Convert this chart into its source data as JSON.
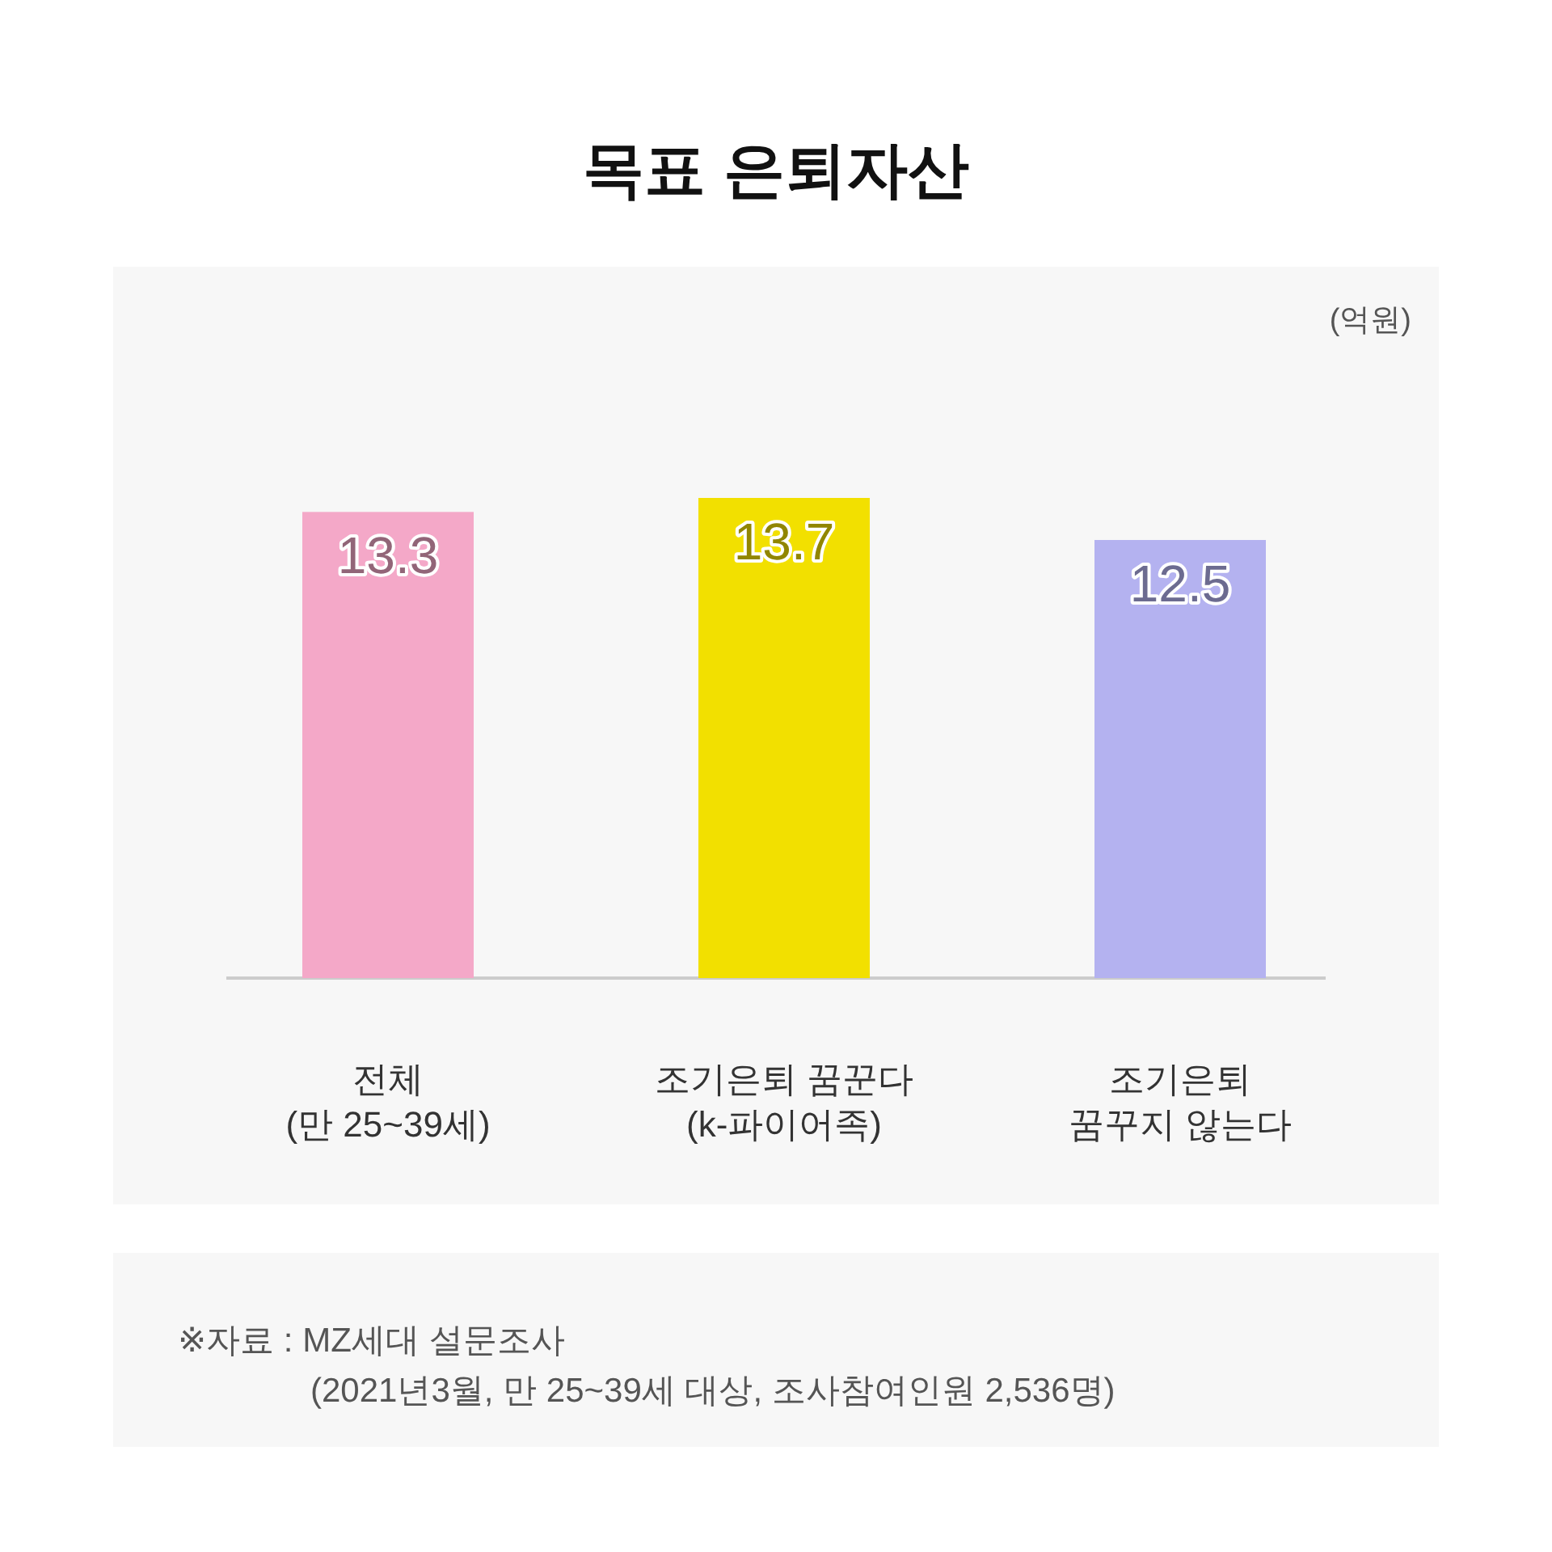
{
  "chart_data": {
    "type": "bar",
    "title": "목표 은퇴자산",
    "categories": [
      "전체\n(만 25~39세)",
      "조기은퇴 꿈꾼다\n(k-파이어족)",
      "조기은퇴\n꿈꾸지 않는다"
    ],
    "values": [
      13.3,
      13.7,
      12.5
    ],
    "colors": [
      "#f4a8c8",
      "#f2e000",
      "#b4b2f0"
    ],
    "data_labels": true,
    "annotations": [
      "(억원)",
      "※자료 : MZ세대 설문조사\n(2021년3월, 만 25~39세 대상, 조사참여인원 2,536명)"
    ]
  }
}
